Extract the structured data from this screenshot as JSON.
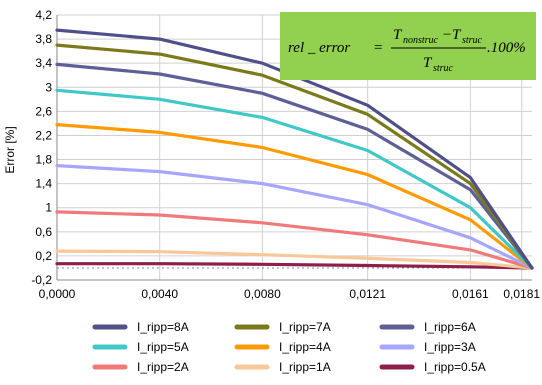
{
  "chart_data": {
    "type": "line",
    "title": "",
    "xlabel": "",
    "ylabel": "Error [%]",
    "xlim": [
      0,
      0.0185
    ],
    "ylim": [
      -0.2,
      4.2
    ],
    "x_ticks": [
      "0,0000",
      "0,0040",
      "0,0080",
      "0,0121",
      "0,0161",
      "0,0181"
    ],
    "x_tick_values": [
      0.0,
      0.004,
      0.008,
      0.0121,
      0.0161,
      0.0181
    ],
    "y_ticks": [
      "-0,2",
      "0,2",
      "0,6",
      "1",
      "1,4",
      "1,8",
      "2,2",
      "2,6",
      "3",
      "3,4",
      "3,8",
      "4,2"
    ],
    "y_tick_values": [
      -0.2,
      0.2,
      0.6,
      1.0,
      1.4,
      1.8,
      2.2,
      2.6,
      3.0,
      3.4,
      3.8,
      4.2
    ],
    "grid": true,
    "legend_position": "bottom",
    "series": [
      {
        "name": "I_ripp=8A",
        "color": "#4f4f8a",
        "values": [
          [
            0.0,
            3.95
          ],
          [
            0.004,
            3.8
          ],
          [
            0.008,
            3.4
          ],
          [
            0.0121,
            2.7
          ],
          [
            0.0161,
            1.5
          ],
          [
            0.0185,
            0.0
          ]
        ]
      },
      {
        "name": "I_ripp=7A",
        "color": "#7a7a1a",
        "values": [
          [
            0.0,
            3.7
          ],
          [
            0.004,
            3.55
          ],
          [
            0.008,
            3.2
          ],
          [
            0.0121,
            2.55
          ],
          [
            0.0161,
            1.4
          ],
          [
            0.0185,
            0.0
          ]
        ]
      },
      {
        "name": "I_ripp=6A",
        "color": "#5f5f98",
        "values": [
          [
            0.0,
            3.38
          ],
          [
            0.004,
            3.22
          ],
          [
            0.008,
            2.9
          ],
          [
            0.0121,
            2.3
          ],
          [
            0.0161,
            1.3
          ],
          [
            0.0185,
            0.0
          ]
        ]
      },
      {
        "name": "I_ripp=5A",
        "color": "#40c8c8",
        "values": [
          [
            0.0,
            2.95
          ],
          [
            0.004,
            2.8
          ],
          [
            0.008,
            2.5
          ],
          [
            0.0121,
            1.95
          ],
          [
            0.0161,
            1.0
          ],
          [
            0.0185,
            0.0
          ]
        ]
      },
      {
        "name": "I_ripp=4A",
        "color": "#ff9a00",
        "values": [
          [
            0.0,
            2.38
          ],
          [
            0.004,
            2.25
          ],
          [
            0.008,
            2.0
          ],
          [
            0.0121,
            1.55
          ],
          [
            0.0161,
            0.8
          ],
          [
            0.0185,
            0.0
          ]
        ]
      },
      {
        "name": "I_ripp=3A",
        "color": "#a6a6ff",
        "values": [
          [
            0.0,
            1.7
          ],
          [
            0.004,
            1.6
          ],
          [
            0.008,
            1.4
          ],
          [
            0.0121,
            1.05
          ],
          [
            0.0161,
            0.5
          ],
          [
            0.0185,
            0.0
          ]
        ]
      },
      {
        "name": "I_ripp=2A",
        "color": "#f07a7a",
        "values": [
          [
            0.0,
            0.93
          ],
          [
            0.004,
            0.88
          ],
          [
            0.008,
            0.75
          ],
          [
            0.0121,
            0.55
          ],
          [
            0.0161,
            0.3
          ],
          [
            0.0185,
            0.0
          ]
        ]
      },
      {
        "name": "I_ripp=1A",
        "color": "#f8c898",
        "values": [
          [
            0.0,
            0.28
          ],
          [
            0.004,
            0.27
          ],
          [
            0.008,
            0.22
          ],
          [
            0.0121,
            0.16
          ],
          [
            0.0161,
            0.09
          ],
          [
            0.0185,
            0.0
          ]
        ]
      },
      {
        "name": "I_ripp=0.5A",
        "color": "#8e1f4a",
        "values": [
          [
            0.0,
            0.07
          ],
          [
            0.004,
            0.07
          ],
          [
            0.008,
            0.06
          ],
          [
            0.0121,
            0.04
          ],
          [
            0.0161,
            0.02
          ],
          [
            0.0185,
            0.0
          ]
        ]
      }
    ],
    "annotation": {
      "background": "#92d050",
      "lhs": "rel _ error",
      "numerator_a": "T",
      "numerator_a_sub": "nonstruc",
      "minus": "−",
      "numerator_b": "T",
      "numerator_b_sub": "struc",
      "denominator": "T",
      "denominator_sub": "struc",
      "suffix": ".100%"
    }
  }
}
